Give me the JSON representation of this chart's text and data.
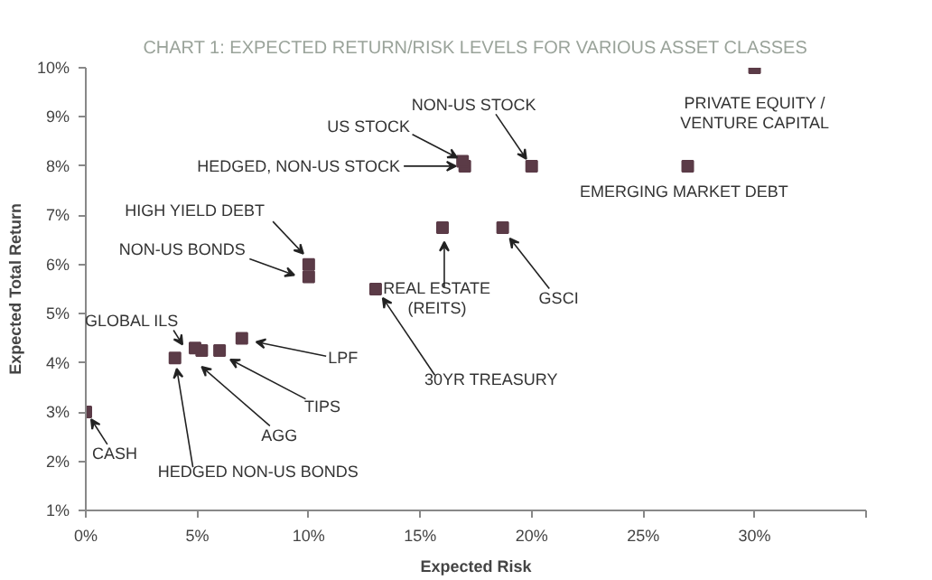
{
  "chart_data": {
    "type": "scatter",
    "title": "CHART 1: EXPECTED RETURN/RISK LEVELS FOR VARIOUS ASSET CLASSES",
    "xlabel": "Expected Risk",
    "ylabel": "Expected Total Return",
    "xlim": [
      0,
      35
    ],
    "ylim": [
      1,
      10
    ],
    "xticks": [
      {
        "value": 0,
        "label": "0%"
      },
      {
        "value": 5,
        "label": "5%"
      },
      {
        "value": 10,
        "label": "10%"
      },
      {
        "value": 15,
        "label": "15%"
      },
      {
        "value": 20,
        "label": "20%"
      },
      {
        "value": 25,
        "label": "25%"
      },
      {
        "value": 30,
        "label": "30%"
      },
      {
        "value": 35,
        "label": null
      }
    ],
    "yticks": [
      {
        "value": 1,
        "label": "1%"
      },
      {
        "value": 2,
        "label": "2%"
      },
      {
        "value": 3,
        "label": "3%"
      },
      {
        "value": 4,
        "label": "4%"
      },
      {
        "value": 5,
        "label": "5%"
      },
      {
        "value": 6,
        "label": "6%"
      },
      {
        "value": 7,
        "label": "7%"
      },
      {
        "value": 8,
        "label": "8%"
      },
      {
        "value": 9,
        "label": "9%"
      },
      {
        "value": 10,
        "label": "10%"
      }
    ],
    "grid": false,
    "marker": "square",
    "series": [
      {
        "color": "#5b3b47",
        "x": [
          0,
          4,
          5.2,
          4.9,
          6,
          7,
          13,
          10,
          10,
          16,
          18.7,
          17,
          16.9,
          20,
          27,
          30
        ],
        "values": [
          3,
          4.1,
          4.25,
          4.3,
          4.25,
          4.5,
          5.5,
          5.75,
          6,
          6.75,
          6.75,
          8,
          8.1,
          8,
          8,
          10
        ]
      }
    ],
    "annotations": [
      {
        "text": "CASH",
        "x": 0,
        "y": 3
      },
      {
        "text": "HEDGED NON-US BONDS",
        "x": 4,
        "y": 4.1
      },
      {
        "text": "AGG",
        "x": 5.2,
        "y": 4.25
      },
      {
        "text": "GLOBAL ILS",
        "x": 4.9,
        "y": 4.3
      },
      {
        "text": "TIPS",
        "x": 6,
        "y": 4.25
      },
      {
        "text": "LPF",
        "x": 7,
        "y": 4.5
      },
      {
        "text": "30YR TREASURY",
        "x": 13,
        "y": 5.5
      },
      {
        "text": "NON-US BONDS",
        "x": 10,
        "y": 5.75
      },
      {
        "text": "HIGH YIELD DEBT",
        "x": 10,
        "y": 6
      },
      {
        "text": "REAL ESTATE\n(REITS)",
        "x": 16,
        "y": 6.75
      },
      {
        "text": "GSCI",
        "x": 18.7,
        "y": 6.75
      },
      {
        "text": "HEDGED, NON-US STOCK",
        "x": 17,
        "y": 8
      },
      {
        "text": "US STOCK",
        "x": 16.9,
        "y": 8.1
      },
      {
        "text": "NON-US STOCK",
        "x": 20,
        "y": 8
      },
      {
        "text": "EMERGING MARKET DEBT",
        "x": 27,
        "y": 8
      },
      {
        "text": "PRIVATE EQUITY /\nVENTURE CAPITAL",
        "x": 30,
        "y": 10
      }
    ]
  }
}
